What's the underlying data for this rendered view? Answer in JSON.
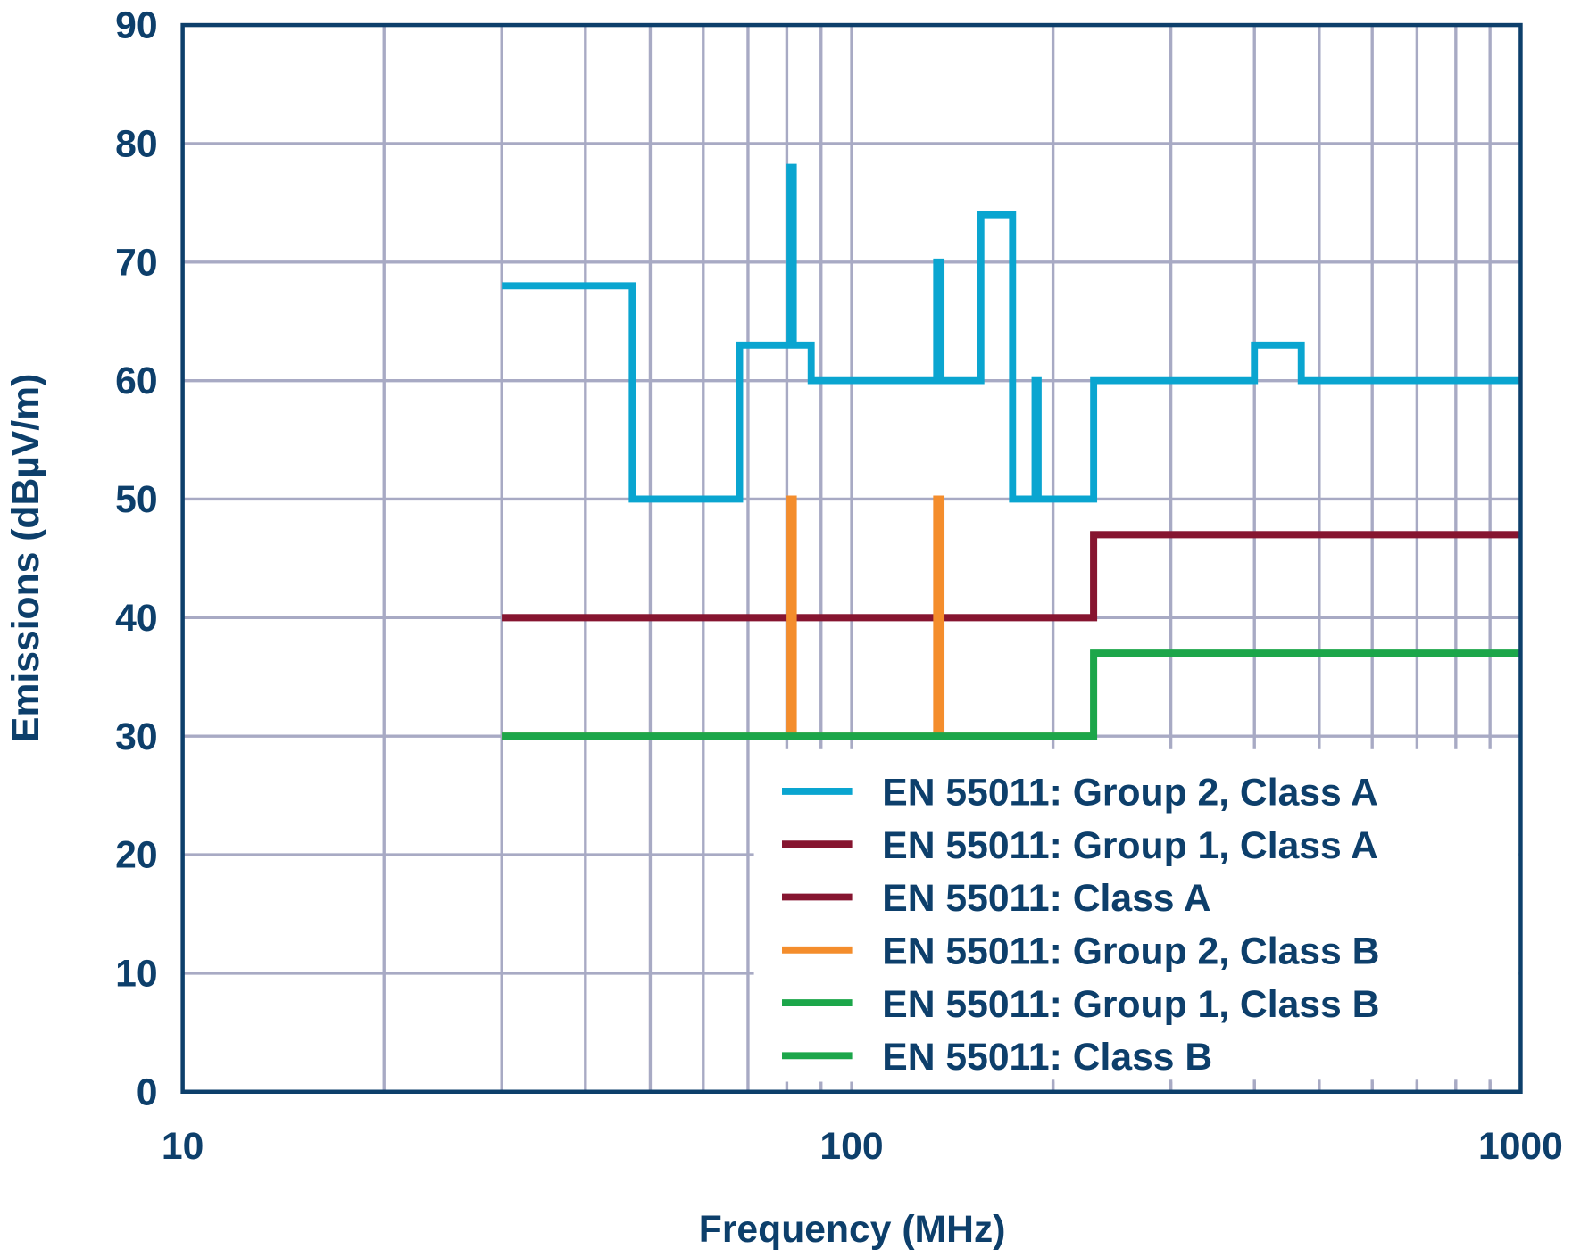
{
  "chart_data": {
    "type": "line",
    "xlabel": "Frequency (MHz)",
    "ylabel": "Emissions (dBµV/m)",
    "xscale": "log",
    "xlim": [
      10,
      1000
    ],
    "ylim": [
      0,
      90
    ],
    "xticks": [
      10,
      100,
      1000
    ],
    "xtick_labels": [
      "10",
      "100",
      "1000"
    ],
    "yticks": [
      0,
      10,
      20,
      30,
      40,
      50,
      60,
      70,
      80,
      90
    ],
    "ytick_labels": [
      "0",
      "10",
      "20",
      "30",
      "40",
      "50",
      "60",
      "70",
      "80",
      "90"
    ],
    "grid": true,
    "legend_position": "bottom-right",
    "colors": {
      "axis": "#0d3f6b",
      "grid": "#a8aac4"
    },
    "series": [
      {
        "name": "EN 55011: Group 2, Class A",
        "color": "#0aa5d0",
        "steps": [
          [
            30,
            47,
            68
          ],
          [
            47,
            68,
            50
          ],
          [
            68,
            80.9,
            63
          ],
          [
            80.9,
            81.8,
            78
          ],
          [
            81.8,
            87,
            63
          ],
          [
            87,
            134,
            60
          ],
          [
            134,
            136,
            70
          ],
          [
            136,
            156,
            60
          ],
          [
            156,
            174,
            74
          ],
          [
            174,
            188,
            50
          ],
          [
            188,
            190,
            60
          ],
          [
            190,
            230,
            50
          ],
          [
            230,
            400,
            60
          ],
          [
            400,
            470,
            63
          ],
          [
            470,
            1000,
            60
          ]
        ]
      },
      {
        "name": "EN 55011: Group 1, Class A",
        "color": "#861530",
        "steps": [
          [
            30,
            230,
            40
          ],
          [
            230,
            1000,
            47
          ]
        ]
      },
      {
        "name": "EN 55011: Class A",
        "color": "#861530",
        "steps": [
          [
            30,
            230,
            40
          ],
          [
            230,
            1000,
            47
          ]
        ]
      },
      {
        "name": "EN 55011: Group 2, Class B",
        "color": "#f48d2c",
        "steps": [
          [
            30,
            80.9,
            30
          ],
          [
            80.9,
            81.8,
            50
          ],
          [
            81.8,
            134,
            30
          ],
          [
            134,
            136,
            50
          ],
          [
            136,
            230,
            30
          ]
        ]
      },
      {
        "name": "EN 55011: Group 1, Class B",
        "color": "#1ca64a",
        "steps": [
          [
            30,
            230,
            30
          ],
          [
            230,
            1000,
            37
          ]
        ]
      },
      {
        "name": "EN 55011: Class B",
        "color": "#1ca64a",
        "steps": [
          [
            30,
            230,
            30
          ],
          [
            230,
            1000,
            37
          ]
        ]
      }
    ]
  }
}
